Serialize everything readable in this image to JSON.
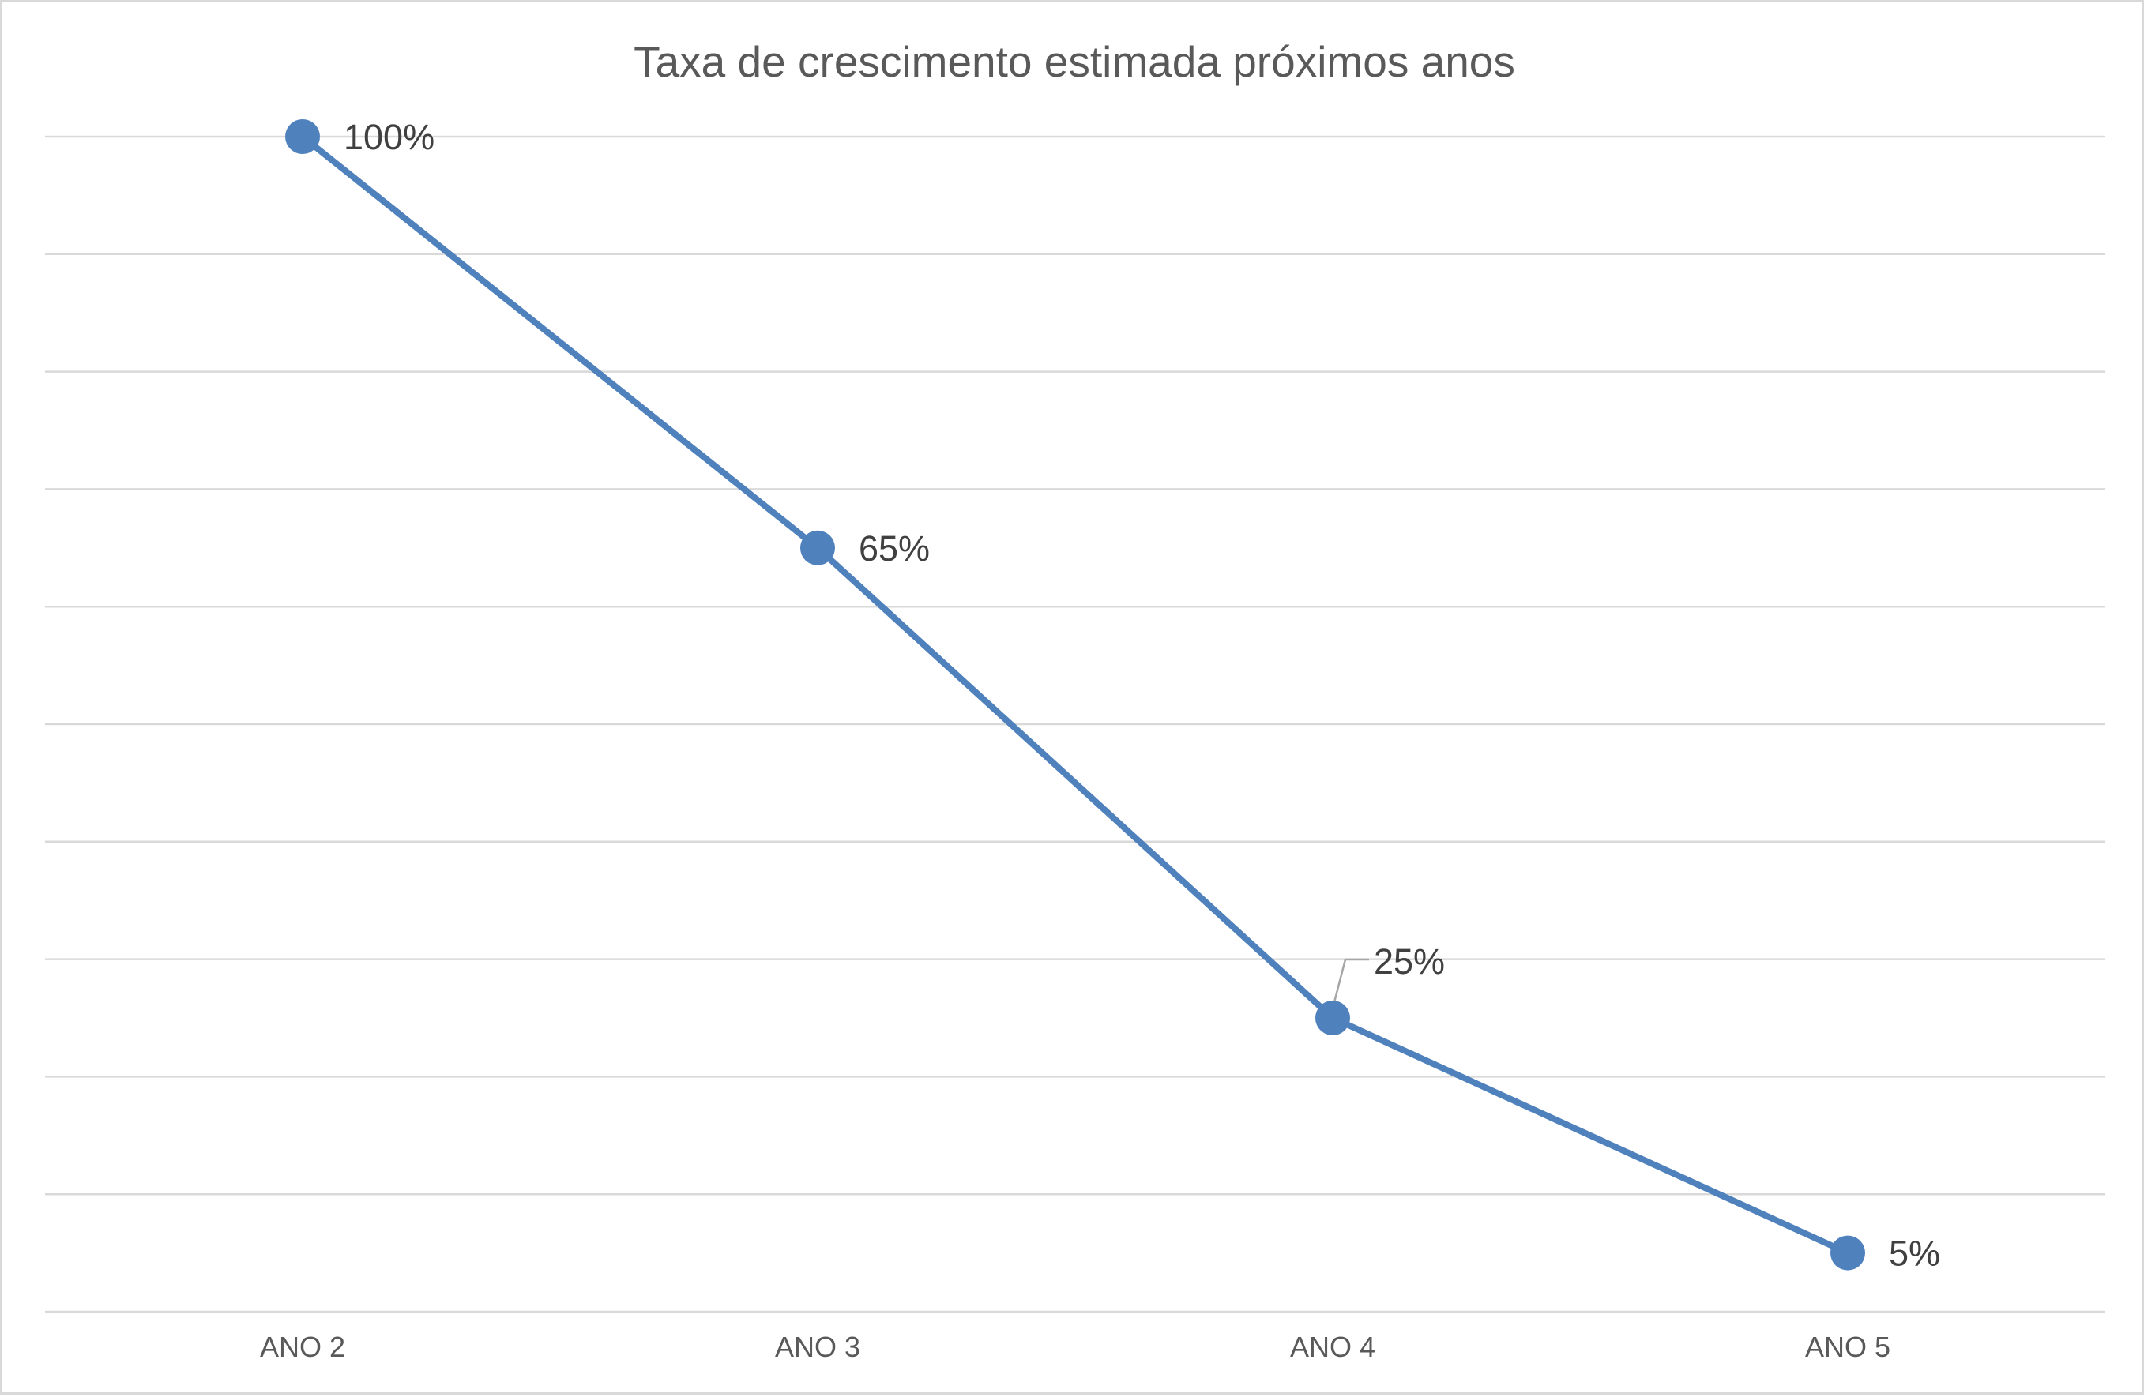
{
  "chart_data": {
    "type": "line",
    "title": "Taxa de crescimento estimada próximos anos",
    "categories": [
      "ANO 2",
      "ANO 3",
      "ANO 4",
      "ANO 5"
    ],
    "series": [
      {
        "values": [
          100,
          65,
          25,
          5
        ]
      }
    ],
    "data_labels": [
      "100%",
      "65%",
      "25%",
      "5%"
    ],
    "ylim": [
      0,
      100
    ],
    "gridlines": 11,
    "grid": true,
    "legend": "none",
    "line_color": "#4f81bd"
  }
}
